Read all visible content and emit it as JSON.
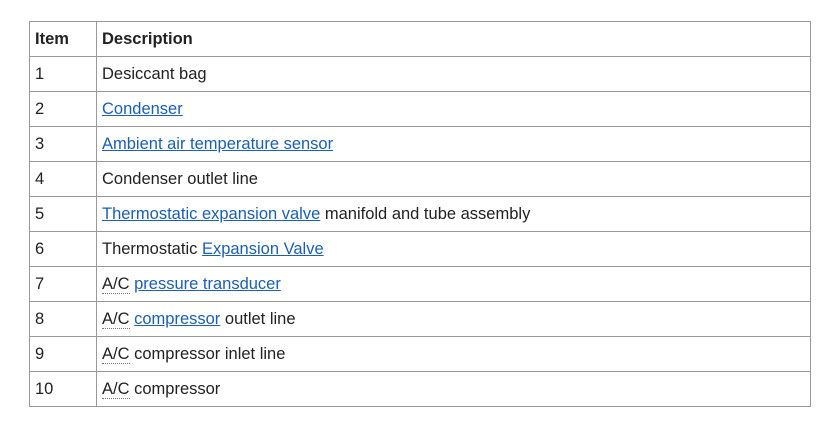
{
  "table": {
    "headers": [
      "Item",
      "Description"
    ],
    "link_color": "#1a5fb4",
    "rows": [
      {
        "item": "1",
        "segments": [
          {
            "t": "Desiccant bag",
            "k": "text"
          }
        ]
      },
      {
        "item": "2",
        "segments": [
          {
            "t": "Condenser",
            "k": "link"
          }
        ]
      },
      {
        "item": "3",
        "segments": [
          {
            "t": "Ambient air temperature sensor",
            "k": "link"
          }
        ]
      },
      {
        "item": "4",
        "segments": [
          {
            "t": "Condenser outlet line",
            "k": "text"
          }
        ]
      },
      {
        "item": "5",
        "segments": [
          {
            "t": "Thermostatic expansion valve",
            "k": "link"
          },
          {
            "t": " manifold and tube assembly",
            "k": "text"
          }
        ]
      },
      {
        "item": "6",
        "segments": [
          {
            "t": "Thermostatic ",
            "k": "text"
          },
          {
            "t": "Expansion Valve",
            "k": "link"
          }
        ]
      },
      {
        "item": "7",
        "segments": [
          {
            "t": "A/C",
            "k": "abbr"
          },
          {
            "t": " ",
            "k": "text"
          },
          {
            "t": "pressure transducer",
            "k": "link"
          }
        ]
      },
      {
        "item": "8",
        "segments": [
          {
            "t": "A/C",
            "k": "abbr"
          },
          {
            "t": " ",
            "k": "text"
          },
          {
            "t": "compressor",
            "k": "link"
          },
          {
            "t": " outlet line",
            "k": "text"
          }
        ]
      },
      {
        "item": "9",
        "segments": [
          {
            "t": "A/C",
            "k": "abbr"
          },
          {
            "t": " compressor inlet line",
            "k": "text"
          }
        ]
      },
      {
        "item": "10",
        "segments": [
          {
            "t": "A/C",
            "k": "abbr"
          },
          {
            "t": " compressor",
            "k": "text"
          }
        ]
      }
    ]
  }
}
